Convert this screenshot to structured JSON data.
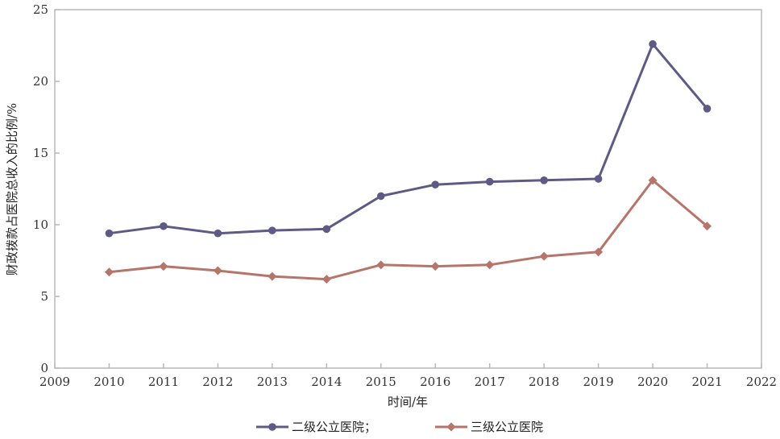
{
  "chart_data": {
    "type": "line",
    "xlabel": "时间/年",
    "ylabel": "财政拨款占医院总收入的比例/%",
    "xlim": [
      2009,
      2022
    ],
    "ylim": [
      0,
      25
    ],
    "x_ticks": [
      "2009",
      "2010",
      "2011",
      "2012",
      "2013",
      "2014",
      "2015",
      "2016",
      "2017",
      "2018",
      "2019",
      "2020",
      "2021",
      "2022"
    ],
    "y_ticks": [
      "0",
      "5",
      "10",
      "15",
      "20",
      "25"
    ],
    "x": [
      2010,
      2011,
      2012,
      2013,
      2014,
      2015,
      2016,
      2017,
      2018,
      2019,
      2020,
      2021
    ],
    "series": [
      {
        "name": "二级公立医院；",
        "color": "#5d5b85",
        "marker": "circle",
        "values": [
          9.4,
          9.9,
          9.4,
          9.6,
          9.7,
          12.0,
          12.8,
          13.0,
          13.1,
          13.2,
          22.6,
          18.1
        ]
      },
      {
        "name": "三级公立医院",
        "color": "#b5756b",
        "marker": "diamond",
        "values": [
          6.7,
          7.1,
          6.8,
          6.4,
          6.2,
          7.2,
          7.1,
          7.2,
          7.8,
          8.1,
          13.1,
          9.9
        ]
      }
    ],
    "grid": false,
    "legend_position": "bottom"
  }
}
